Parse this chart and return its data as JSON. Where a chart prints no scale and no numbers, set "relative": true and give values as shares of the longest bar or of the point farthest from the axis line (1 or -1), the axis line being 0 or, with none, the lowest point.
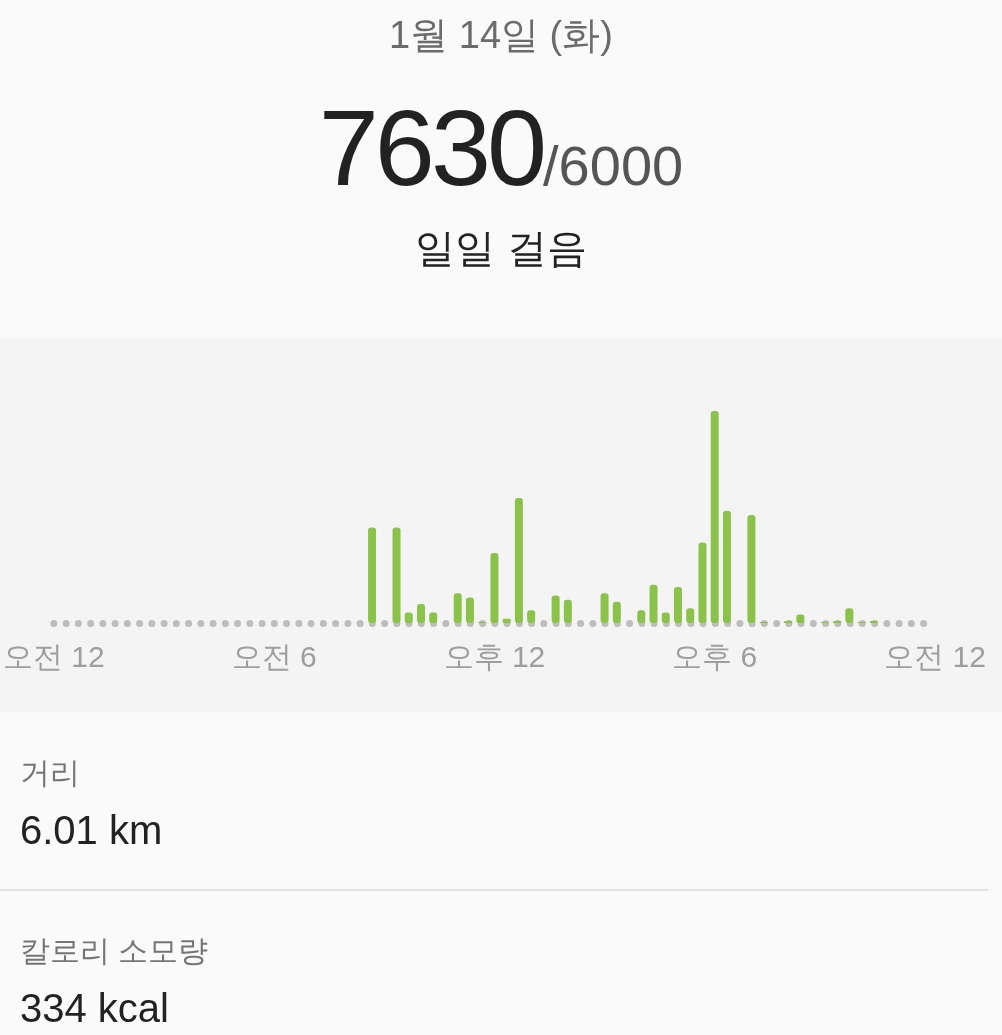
{
  "chart_data": {
    "type": "bar",
    "relative": true,
    "title": "1월 14일 (화)",
    "annotations": [
      "7630/6000",
      "일일 걸음",
      "거리",
      "6.01 km",
      "칼로리 소모량",
      "334 kcal"
    ],
    "color": "#8bc34a",
    "categories": [
      "오전 12",
      null,
      null,
      null,
      null,
      null,
      null,
      null,
      null,
      null,
      null,
      null,
      null,
      null,
      null,
      null,
      null,
      null,
      "오전 6",
      null,
      null,
      null,
      null,
      null,
      null,
      null,
      null,
      null,
      null,
      null,
      null,
      null,
      null,
      null,
      null,
      null,
      "오후 12",
      null,
      null,
      null,
      null,
      null,
      null,
      null,
      null,
      null,
      null,
      null,
      null,
      null,
      null,
      null,
      null,
      null,
      "오후 6",
      null,
      null,
      null,
      null,
      null,
      null,
      null,
      null,
      null,
      null,
      null,
      null,
      null,
      null,
      null,
      null,
      null,
      "오전 12"
    ],
    "values": [
      null,
      null,
      null,
      null,
      null,
      null,
      null,
      null,
      null,
      null,
      null,
      null,
      null,
      null,
      null,
      null,
      null,
      null,
      null,
      null,
      null,
      null,
      null,
      null,
      null,
      null,
      0.45,
      null,
      0.45,
      0.05,
      0.09,
      0.05,
      null,
      0.14,
      0.12,
      0.005,
      0.33,
      0.02,
      0.59,
      0.06,
      null,
      0.13,
      0.11,
      null,
      null,
      0.14,
      0.1,
      null,
      0.06,
      0.18,
      0.05,
      0.17,
      0.07,
      0.38,
      1,
      0.53,
      null,
      0.51,
      0.005,
      null,
      0.01,
      0.04,
      null,
      0.005,
      0.01,
      0.07,
      0.005,
      0.01,
      null,
      null,
      null,
      null,
      null
    ]
  }
}
